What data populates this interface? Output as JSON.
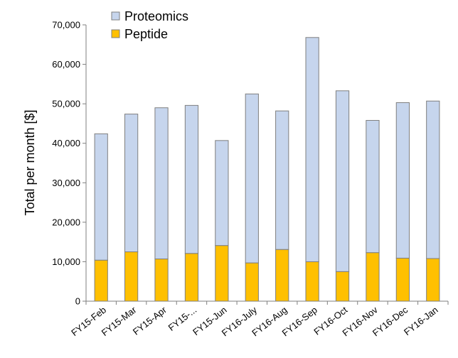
{
  "chart_data": {
    "type": "bar",
    "stacked": true,
    "title": "",
    "xlabel": "",
    "ylabel": "Total per month [$]",
    "ylim": [
      0,
      70000
    ],
    "yticks": [
      0,
      10000,
      20000,
      30000,
      40000,
      50000,
      60000,
      70000
    ],
    "ytick_labels": [
      "0",
      "10,000",
      "20,000",
      "30,000",
      "40,000",
      "50,000",
      "60,000",
      "70,000"
    ],
    "grid": false,
    "legend_position": "top-left",
    "categories": [
      "FY15-Feb",
      "FY15-Mar",
      "FY15-Apr",
      "FY15-...",
      "FY15-Jun",
      "FY16-July",
      "FY16-Aug",
      "FY16-Sep",
      "FY16-Oct",
      "FY16-Nov",
      "FY16-Dec",
      "FY16-Jan"
    ],
    "series": [
      {
        "name": "Peptide",
        "color": "#FFC000",
        "values": [
          10400,
          12500,
          10700,
          12100,
          14100,
          9700,
          13100,
          10000,
          7500,
          12300,
          10900,
          10800
        ]
      },
      {
        "name": "Proteomics",
        "color": "#C6D5ED",
        "values": [
          32000,
          34900,
          38300,
          37500,
          26600,
          42800,
          35100,
          56800,
          45800,
          33500,
          39400,
          39900
        ]
      }
    ],
    "legend": [
      "Proteomics",
      "Peptide"
    ]
  }
}
